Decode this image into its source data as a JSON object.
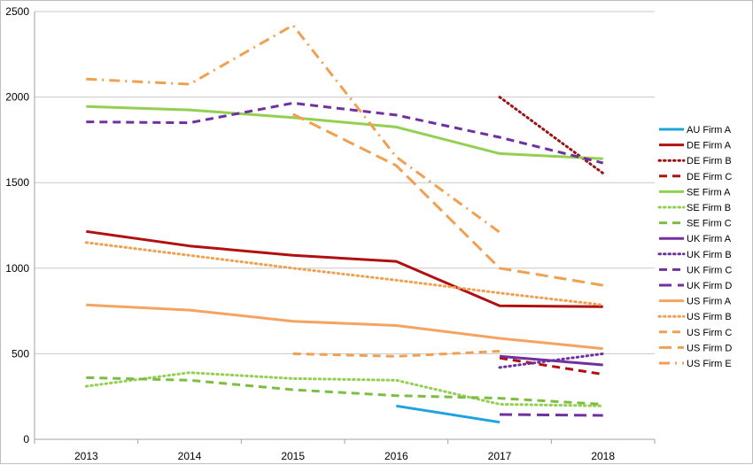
{
  "chart_data": {
    "type": "line",
    "title": "",
    "xlabel": "",
    "ylabel": "",
    "categories": [
      "2013",
      "2014",
      "2015",
      "2016",
      "2017",
      "2018"
    ],
    "ylim": [
      0,
      2500
    ],
    "yticks": [
      0,
      500,
      1000,
      1500,
      2000,
      2500
    ],
    "grid": "horizontal",
    "legend_position": "right",
    "series": [
      {
        "name": "AU Firm A",
        "color": "#1fa3dc",
        "dash": "solid",
        "values": [
          null,
          null,
          null,
          195,
          100,
          null
        ]
      },
      {
        "name": "DE Firm A",
        "color": "#b01010",
        "dash": "solid",
        "values": [
          1215,
          1130,
          1075,
          1040,
          780,
          775
        ]
      },
      {
        "name": "DE Firm B",
        "color": "#9a1515",
        "dash": "dot",
        "values": [
          null,
          null,
          null,
          null,
          2000,
          1555
        ]
      },
      {
        "name": "DE Firm C",
        "color": "#b01010",
        "dash": "dash",
        "values": [
          null,
          null,
          null,
          null,
          475,
          380
        ]
      },
      {
        "name": "SE Firm A",
        "color": "#92d050",
        "dash": "solid",
        "values": [
          1945,
          1925,
          1880,
          1825,
          1670,
          1640
        ]
      },
      {
        "name": "SE Firm B",
        "color": "#92d050",
        "dash": "dot",
        "values": [
          310,
          390,
          355,
          345,
          205,
          195
        ]
      },
      {
        "name": "SE Firm C",
        "color": "#7cbd44",
        "dash": "dash",
        "values": [
          360,
          345,
          290,
          255,
          240,
          205
        ]
      },
      {
        "name": "UK Firm A",
        "color": "#7030a0",
        "dash": "solid",
        "values": [
          null,
          null,
          null,
          null,
          485,
          435
        ]
      },
      {
        "name": "UK Firm B",
        "color": "#7030a0",
        "dash": "dot",
        "values": [
          null,
          null,
          null,
          null,
          420,
          500
        ]
      },
      {
        "name": "UK Firm C",
        "color": "#7030a0",
        "dash": "dash",
        "values": [
          1855,
          1850,
          1965,
          1895,
          1765,
          1615
        ]
      },
      {
        "name": "UK Firm D",
        "color": "#7030a0",
        "dash": "longdash",
        "values": [
          null,
          null,
          null,
          null,
          145,
          140
        ]
      },
      {
        "name": "US Firm A",
        "color": "#f4a460",
        "dash": "solid",
        "values": [
          785,
          755,
          690,
          665,
          590,
          530
        ]
      },
      {
        "name": "US Firm B",
        "color": "#f0a050",
        "dash": "dot",
        "values": [
          1150,
          1075,
          1000,
          930,
          855,
          785
        ]
      },
      {
        "name": "US Firm C",
        "color": "#f0a050",
        "dash": "dash",
        "values": [
          null,
          null,
          500,
          485,
          515,
          null
        ]
      },
      {
        "name": "US Firm D",
        "color": "#f0a050",
        "dash": "longdash",
        "values": [
          null,
          null,
          1900,
          1600,
          1000,
          900
        ]
      },
      {
        "name": "US Firm E",
        "color": "#f0a050",
        "dash": "dashdot",
        "values": [
          2105,
          2075,
          2420,
          1650,
          1210,
          null
        ]
      }
    ]
  }
}
